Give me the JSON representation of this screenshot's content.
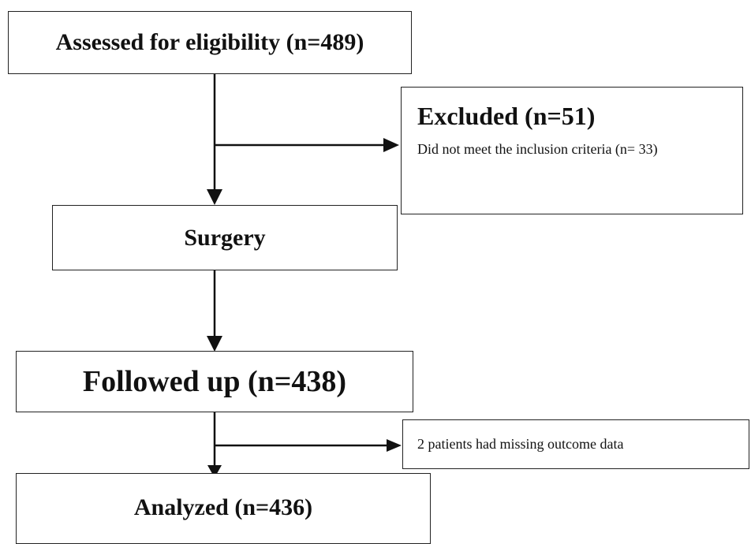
{
  "nodes": [
    {
      "label": "Assessed for eligibility (n=489)"
    },
    {
      "label": "Excluded (n=51)",
      "detail": "Did not meet the inclusion criteria (n= 33)"
    },
    {
      "label": "Surgery"
    },
    {
      "label": "Followed up (n=438)"
    },
    {
      "label": "2 patients had missing outcome data"
    },
    {
      "label": "Analyzed (n=436)"
    }
  ]
}
